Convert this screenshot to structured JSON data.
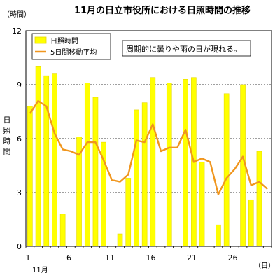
{
  "chart_data": {
    "type": "bar",
    "title": "11月の日立市役所における日照時間の推移",
    "y_unit_label": "（時間）",
    "ylabel": "日照時間",
    "xlabel": "（日）",
    "x_month_label": "11月",
    "annotation": "周期的に曇りや雨の日が現れる。",
    "ylim": [
      0,
      12
    ],
    "y_ticks": [
      0,
      3,
      6,
      9,
      12
    ],
    "x_ticks": [
      1,
      6,
      11,
      16,
      21,
      26
    ],
    "grid": "horizontal dotted",
    "legend_position": "top-left",
    "colors": {
      "bar": "#ffff00",
      "bar_edge": "#e6d800",
      "line": "#f0961e"
    },
    "days": [
      1,
      2,
      3,
      4,
      5,
      6,
      7,
      8,
      9,
      10,
      11,
      12,
      13,
      14,
      15,
      16,
      17,
      18,
      19,
      20,
      21,
      22,
      23,
      24,
      25,
      26,
      27,
      28,
      29,
      30
    ],
    "series": [
      {
        "name": "日照時間",
        "kind": "bar",
        "values": [
          7.8,
          10.0,
          9.5,
          9.6,
          1.8,
          0.0,
          6.1,
          9.1,
          8.3,
          5.8,
          0.0,
          0.7,
          3.8,
          7.6,
          8.0,
          9.4,
          0.0,
          9.1,
          0.0,
          9.3,
          9.4,
          4.7,
          0.0,
          1.2,
          8.5,
          0.0,
          9.0,
          2.6,
          5.3,
          0.0
        ]
      },
      {
        "name": "5日間移動平均",
        "kind": "line",
        "values": [
          7.4,
          8.1,
          7.8,
          6.3,
          5.4,
          5.3,
          5.1,
          5.8,
          5.8,
          4.8,
          3.7,
          3.6,
          4.0,
          5.9,
          5.8,
          6.8,
          5.3,
          5.5,
          5.5,
          6.5,
          4.7,
          4.9,
          4.7,
          2.9,
          3.8,
          4.3,
          5.0,
          3.4,
          3.6,
          3.2
        ]
      }
    ]
  }
}
